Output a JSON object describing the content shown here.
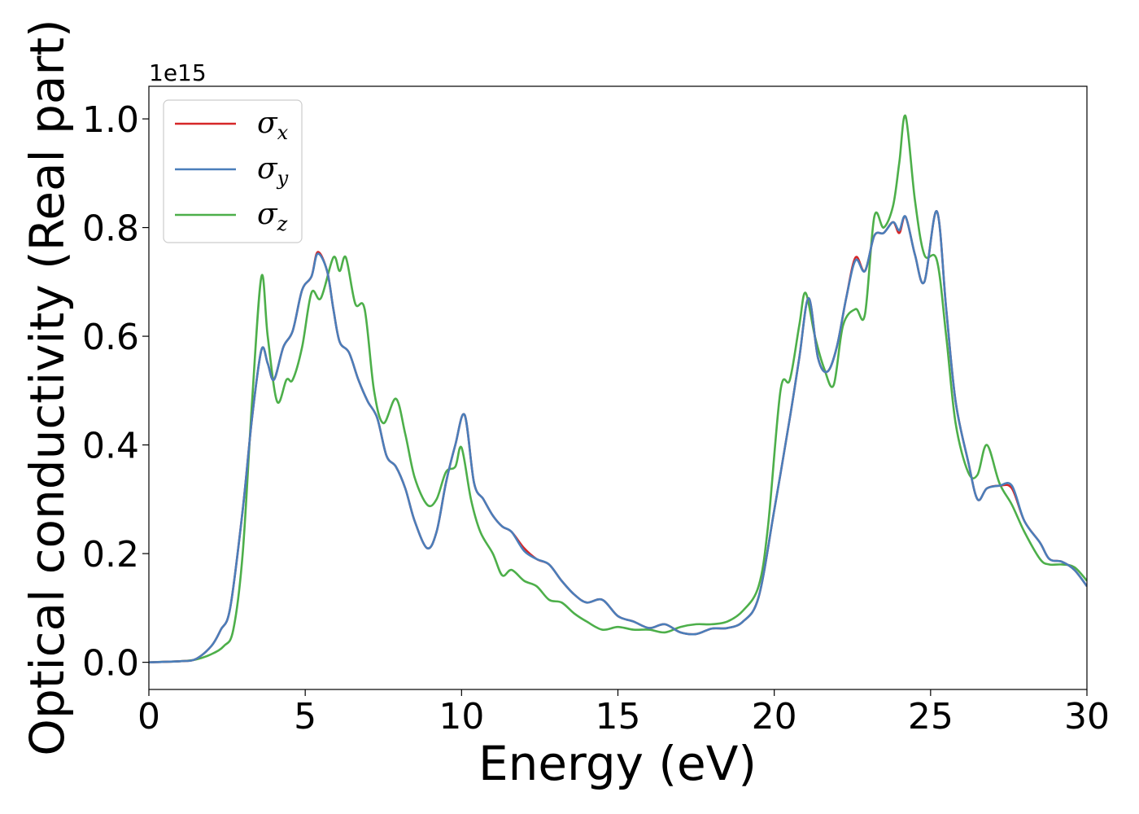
{
  "chart_data": {
    "type": "line",
    "xlabel": "Energy (eV)",
    "ylabel": "Optical conductivity (Real part)",
    "y_offset_label": "1e15",
    "xlim": [
      0,
      30
    ],
    "ylim": [
      -0.05,
      1.06
    ],
    "x_ticks": [
      0,
      5,
      10,
      15,
      20,
      25,
      30
    ],
    "x_tick_labels": [
      "0",
      "5",
      "10",
      "15",
      "20",
      "25",
      "30"
    ],
    "y_ticks": [
      0.0,
      0.2,
      0.4,
      0.6,
      0.8,
      1.0
    ],
    "y_tick_labels": [
      "0.0",
      "0.2",
      "0.4",
      "0.6",
      "0.8",
      "1.0"
    ],
    "grid": false,
    "legend_position": "top-left",
    "series": [
      {
        "name": "σx",
        "symbol": "σ",
        "sub": "x",
        "color": "#d62728",
        "points": [
          [
            0,
            0
          ],
          [
            1,
            0.002
          ],
          [
            1.5,
            0.006
          ],
          [
            2,
            0.03
          ],
          [
            2.3,
            0.06
          ],
          [
            2.6,
            0.1
          ],
          [
            3,
            0.28
          ],
          [
            3.3,
            0.45
          ],
          [
            3.6,
            0.575
          ],
          [
            3.8,
            0.55
          ],
          [
            4,
            0.52
          ],
          [
            4.3,
            0.58
          ],
          [
            4.6,
            0.61
          ],
          [
            4.9,
            0.685
          ],
          [
            5.2,
            0.71
          ],
          [
            5.4,
            0.755
          ],
          [
            5.7,
            0.72
          ],
          [
            5.9,
            0.65
          ],
          [
            6.1,
            0.59
          ],
          [
            6.4,
            0.57
          ],
          [
            6.7,
            0.52
          ],
          [
            7,
            0.48
          ],
          [
            7.3,
            0.45
          ],
          [
            7.6,
            0.38
          ],
          [
            7.9,
            0.36
          ],
          [
            8.2,
            0.32
          ],
          [
            8.5,
            0.26
          ],
          [
            8.9,
            0.21
          ],
          [
            9.2,
            0.24
          ],
          [
            9.5,
            0.33
          ],
          [
            9.8,
            0.4
          ],
          [
            10.1,
            0.455
          ],
          [
            10.4,
            0.33
          ],
          [
            10.7,
            0.3
          ],
          [
            11,
            0.27
          ],
          [
            11.3,
            0.25
          ],
          [
            11.6,
            0.24
          ],
          [
            12,
            0.21
          ],
          [
            12.4,
            0.19
          ],
          [
            12.8,
            0.18
          ],
          [
            13.2,
            0.15
          ],
          [
            13.6,
            0.125
          ],
          [
            14,
            0.11
          ],
          [
            14.5,
            0.115
          ],
          [
            15,
            0.085
          ],
          [
            15.5,
            0.075
          ],
          [
            16,
            0.063
          ],
          [
            16.5,
            0.07
          ],
          [
            17,
            0.055
          ],
          [
            17.5,
            0.052
          ],
          [
            18,
            0.062
          ],
          [
            18.5,
            0.063
          ],
          [
            19,
            0.075
          ],
          [
            19.5,
            0.12
          ],
          [
            20,
            0.28
          ],
          [
            20.5,
            0.45
          ],
          [
            20.8,
            0.56
          ],
          [
            21.1,
            0.67
          ],
          [
            21.4,
            0.56
          ],
          [
            21.7,
            0.535
          ],
          [
            22,
            0.58
          ],
          [
            22.3,
            0.67
          ],
          [
            22.6,
            0.745
          ],
          [
            22.9,
            0.72
          ],
          [
            23.2,
            0.785
          ],
          [
            23.5,
            0.79
          ],
          [
            23.8,
            0.81
          ],
          [
            24,
            0.79
          ],
          [
            24.2,
            0.82
          ],
          [
            24.5,
            0.75
          ],
          [
            24.8,
            0.7
          ],
          [
            25.2,
            0.83
          ],
          [
            25.5,
            0.65
          ],
          [
            25.8,
            0.48
          ],
          [
            26.2,
            0.37
          ],
          [
            26.5,
            0.3
          ],
          [
            26.8,
            0.32
          ],
          [
            27.2,
            0.325
          ],
          [
            27.6,
            0.32
          ],
          [
            28,
            0.26
          ],
          [
            28.5,
            0.22
          ],
          [
            28.8,
            0.19
          ],
          [
            29.2,
            0.185
          ],
          [
            29.6,
            0.17
          ],
          [
            30,
            0.14
          ]
        ]
      },
      {
        "name": "σy",
        "symbol": "σ",
        "sub": "y",
        "color": "#4a7eba",
        "points": [
          [
            0,
            0
          ],
          [
            1,
            0.002
          ],
          [
            1.5,
            0.006
          ],
          [
            2,
            0.03
          ],
          [
            2.3,
            0.06
          ],
          [
            2.6,
            0.1
          ],
          [
            3,
            0.28
          ],
          [
            3.3,
            0.45
          ],
          [
            3.6,
            0.575
          ],
          [
            3.8,
            0.55
          ],
          [
            4,
            0.52
          ],
          [
            4.3,
            0.58
          ],
          [
            4.6,
            0.61
          ],
          [
            4.9,
            0.685
          ],
          [
            5.2,
            0.71
          ],
          [
            5.4,
            0.752
          ],
          [
            5.7,
            0.72
          ],
          [
            5.9,
            0.65
          ],
          [
            6.1,
            0.59
          ],
          [
            6.4,
            0.57
          ],
          [
            6.7,
            0.52
          ],
          [
            7,
            0.48
          ],
          [
            7.3,
            0.45
          ],
          [
            7.6,
            0.38
          ],
          [
            7.9,
            0.36
          ],
          [
            8.2,
            0.32
          ],
          [
            8.5,
            0.26
          ],
          [
            8.9,
            0.21
          ],
          [
            9.2,
            0.24
          ],
          [
            9.5,
            0.33
          ],
          [
            9.8,
            0.4
          ],
          [
            10.1,
            0.455
          ],
          [
            10.4,
            0.33
          ],
          [
            10.7,
            0.3
          ],
          [
            11,
            0.27
          ],
          [
            11.3,
            0.25
          ],
          [
            11.6,
            0.24
          ],
          [
            12,
            0.205
          ],
          [
            12.4,
            0.19
          ],
          [
            12.8,
            0.18
          ],
          [
            13.2,
            0.15
          ],
          [
            13.6,
            0.125
          ],
          [
            14,
            0.11
          ],
          [
            14.5,
            0.115
          ],
          [
            15,
            0.085
          ],
          [
            15.5,
            0.075
          ],
          [
            16,
            0.063
          ],
          [
            16.5,
            0.07
          ],
          [
            17,
            0.055
          ],
          [
            17.5,
            0.052
          ],
          [
            18,
            0.062
          ],
          [
            18.5,
            0.063
          ],
          [
            19,
            0.075
          ],
          [
            19.5,
            0.12
          ],
          [
            20,
            0.28
          ],
          [
            20.5,
            0.45
          ],
          [
            20.8,
            0.56
          ],
          [
            21.1,
            0.67
          ],
          [
            21.4,
            0.56
          ],
          [
            21.7,
            0.535
          ],
          [
            22,
            0.58
          ],
          [
            22.3,
            0.67
          ],
          [
            22.6,
            0.74
          ],
          [
            22.9,
            0.72
          ],
          [
            23.2,
            0.785
          ],
          [
            23.5,
            0.79
          ],
          [
            23.8,
            0.81
          ],
          [
            24,
            0.795
          ],
          [
            24.2,
            0.82
          ],
          [
            24.5,
            0.75
          ],
          [
            24.8,
            0.7
          ],
          [
            25.2,
            0.83
          ],
          [
            25.5,
            0.65
          ],
          [
            25.8,
            0.48
          ],
          [
            26.2,
            0.37
          ],
          [
            26.5,
            0.3
          ],
          [
            26.8,
            0.32
          ],
          [
            27.2,
            0.325
          ],
          [
            27.6,
            0.325
          ],
          [
            28,
            0.26
          ],
          [
            28.5,
            0.22
          ],
          [
            28.8,
            0.19
          ],
          [
            29.2,
            0.185
          ],
          [
            29.6,
            0.17
          ],
          [
            30,
            0.14
          ]
        ]
      },
      {
        "name": "σz",
        "symbol": "σ",
        "sub": "z",
        "color": "#4daf4a",
        "points": [
          [
            0,
            0
          ],
          [
            1,
            0.002
          ],
          [
            1.5,
            0.005
          ],
          [
            2,
            0.015
          ],
          [
            2.4,
            0.03
          ],
          [
            2.7,
            0.06
          ],
          [
            3,
            0.2
          ],
          [
            3.3,
            0.48
          ],
          [
            3.6,
            0.71
          ],
          [
            3.8,
            0.6
          ],
          [
            4.1,
            0.48
          ],
          [
            4.4,
            0.52
          ],
          [
            4.6,
            0.52
          ],
          [
            4.9,
            0.58
          ],
          [
            5.2,
            0.68
          ],
          [
            5.5,
            0.67
          ],
          [
            5.9,
            0.745
          ],
          [
            6.1,
            0.72
          ],
          [
            6.3,
            0.745
          ],
          [
            6.6,
            0.66
          ],
          [
            6.9,
            0.65
          ],
          [
            7.2,
            0.5
          ],
          [
            7.5,
            0.44
          ],
          [
            7.9,
            0.485
          ],
          [
            8.2,
            0.42
          ],
          [
            8.5,
            0.34
          ],
          [
            8.9,
            0.29
          ],
          [
            9.2,
            0.3
          ],
          [
            9.5,
            0.35
          ],
          [
            9.8,
            0.36
          ],
          [
            10,
            0.395
          ],
          [
            10.3,
            0.3
          ],
          [
            10.6,
            0.24
          ],
          [
            11,
            0.2
          ],
          [
            11.3,
            0.16
          ],
          [
            11.6,
            0.17
          ],
          [
            12,
            0.15
          ],
          [
            12.4,
            0.14
          ],
          [
            12.8,
            0.115
          ],
          [
            13.2,
            0.11
          ],
          [
            13.6,
            0.09
          ],
          [
            14,
            0.075
          ],
          [
            14.5,
            0.06
          ],
          [
            15,
            0.065
          ],
          [
            15.5,
            0.06
          ],
          [
            16,
            0.06
          ],
          [
            16.5,
            0.055
          ],
          [
            17,
            0.065
          ],
          [
            17.5,
            0.07
          ],
          [
            18,
            0.07
          ],
          [
            18.5,
            0.075
          ],
          [
            19,
            0.095
          ],
          [
            19.5,
            0.14
          ],
          [
            19.8,
            0.25
          ],
          [
            20.2,
            0.5
          ],
          [
            20.5,
            0.52
          ],
          [
            20.8,
            0.62
          ],
          [
            21,
            0.68
          ],
          [
            21.3,
            0.6
          ],
          [
            21.6,
            0.54
          ],
          [
            21.9,
            0.51
          ],
          [
            22.2,
            0.62
          ],
          [
            22.6,
            0.65
          ],
          [
            22.9,
            0.64
          ],
          [
            23.2,
            0.82
          ],
          [
            23.5,
            0.8
          ],
          [
            23.8,
            0.84
          ],
          [
            24,
            0.92
          ],
          [
            24.2,
            1.005
          ],
          [
            24.5,
            0.85
          ],
          [
            24.8,
            0.75
          ],
          [
            25.2,
            0.74
          ],
          [
            25.5,
            0.6
          ],
          [
            25.8,
            0.44
          ],
          [
            26.2,
            0.35
          ],
          [
            26.5,
            0.345
          ],
          [
            26.8,
            0.4
          ],
          [
            27.2,
            0.33
          ],
          [
            27.6,
            0.29
          ],
          [
            28,
            0.24
          ],
          [
            28.5,
            0.19
          ],
          [
            28.8,
            0.18
          ],
          [
            29.2,
            0.18
          ],
          [
            29.6,
            0.175
          ],
          [
            30,
            0.15
          ]
        ]
      }
    ]
  }
}
